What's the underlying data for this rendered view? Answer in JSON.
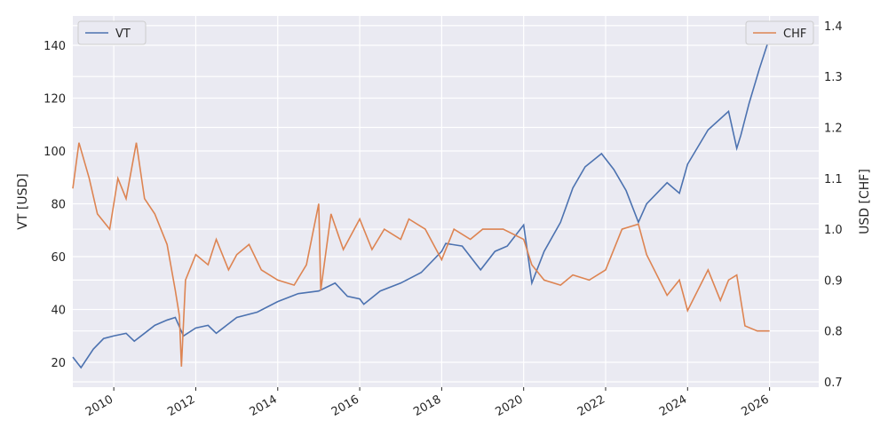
{
  "chart_data": {
    "type": "line",
    "xlim": [
      2009.0,
      2027.2
    ],
    "xticks": [
      2010,
      2012,
      2014,
      2016,
      2018,
      2020,
      2022,
      2024,
      2026
    ],
    "ylim": [
      10.6,
      151.1
    ],
    "yticks": [
      20,
      40,
      60,
      80,
      100,
      120,
      140
    ],
    "y2lim": [
      0.6895,
      1.419
    ],
    "y2ticks": [
      0.7,
      0.8,
      0.9,
      {
        "value": 1,
        "label": "1.0"
      },
      1.1,
      1.2,
      1.3,
      1.4
    ],
    "ylabel": "VT [USD]",
    "y2label": "USD [CHF]",
    "grid": true,
    "series": [
      {
        "name": "VT",
        "color": "#4c72b0",
        "legend": "upper left",
        "x": [
          2009.0,
          2009.2,
          2009.5,
          2009.75,
          2010.0,
          2010.3,
          2010.5,
          2010.75,
          2011.0,
          2011.3,
          2011.5,
          2011.7,
          2012.0,
          2012.3,
          2012.5,
          2012.75,
          2013.0,
          2013.5,
          2014.0,
          2014.5,
          2015.0,
          2015.4,
          2015.7,
          2016.0,
          2016.1,
          2016.5,
          2017.0,
          2017.5,
          2018.0,
          2018.1,
          2018.5,
          2018.95,
          2019.3,
          2019.6,
          2020.0,
          2020.2,
          2020.5,
          2020.9,
          2021.2,
          2021.5,
          2021.9,
          2022.2,
          2022.5,
          2022.8,
          2023.0,
          2023.5,
          2023.8,
          2024.0,
          2024.5,
          2025.0,
          2025.2,
          2025.3,
          2025.5,
          2025.75,
          2026.0
        ],
        "values": [
          22,
          18,
          25,
          29,
          30,
          31,
          28,
          31,
          34,
          36,
          37,
          30,
          33,
          34,
          31,
          34,
          37,
          39,
          43,
          46,
          47,
          50,
          45,
          44,
          42,
          47,
          50,
          54,
          62,
          65,
          64,
          55,
          62,
          64,
          72,
          50,
          62,
          73,
          86,
          94,
          99,
          93,
          85,
          73,
          80,
          88,
          84,
          95,
          108,
          115,
          101,
          106,
          118,
          131,
          143
        ]
      },
      {
        "name": "CHF",
        "color": "#dd8452",
        "legend": "upper right",
        "axis": "y2",
        "x": [
          2009.0,
          2009.15,
          2009.4,
          2009.6,
          2009.9,
          2010.1,
          2010.3,
          2010.55,
          2010.75,
          2011.0,
          2011.3,
          2011.5,
          2011.6,
          2011.65,
          2011.75,
          2012.0,
          2012.3,
          2012.5,
          2012.8,
          2013.0,
          2013.3,
          2013.6,
          2014.0,
          2014.4,
          2014.7,
          2015.0,
          2015.05,
          2015.3,
          2015.6,
          2016.0,
          2016.3,
          2016.6,
          2017.0,
          2017.2,
          2017.6,
          2018.0,
          2018.3,
          2018.7,
          2019.0,
          2019.5,
          2020.0,
          2020.2,
          2020.5,
          2020.9,
          2021.2,
          2021.6,
          2022.0,
          2022.4,
          2022.8,
          2023.0,
          2023.5,
          2023.8,
          2024.0,
          2024.5,
          2024.8,
          2025.0,
          2025.2,
          2025.4,
          2025.7,
          2026.0
        ],
        "values": [
          1.08,
          1.17,
          1.1,
          1.03,
          1.0,
          1.1,
          1.06,
          1.17,
          1.06,
          1.03,
          0.97,
          0.88,
          0.83,
          0.73,
          0.9,
          0.95,
          0.93,
          0.98,
          0.92,
          0.95,
          0.97,
          0.92,
          0.9,
          0.89,
          0.93,
          1.05,
          0.88,
          1.03,
          0.96,
          1.02,
          0.96,
          1.0,
          0.98,
          1.02,
          1.0,
          0.94,
          1.0,
          0.98,
          1.0,
          1.0,
          0.98,
          0.93,
          0.9,
          0.89,
          0.91,
          0.9,
          0.92,
          1.0,
          1.01,
          0.95,
          0.87,
          0.9,
          0.84,
          0.92,
          0.86,
          0.9,
          0.91,
          0.81,
          0.8,
          0.8
        ]
      }
    ]
  }
}
